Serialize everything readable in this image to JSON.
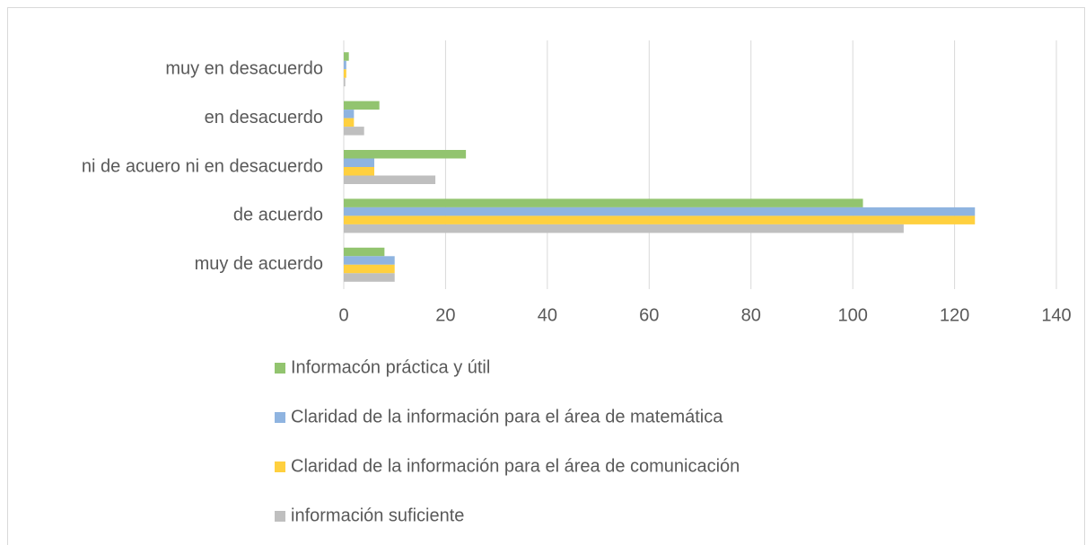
{
  "chart_data": {
    "type": "hbar",
    "categories": [
      "muy en desacuerdo",
      "en desacuerdo",
      "ni de acuero  ni en desacuerdo",
      "de acuerdo",
      "muy de acuerdo"
    ],
    "series": [
      {
        "name": "Informacón práctica y útil",
        "color": "#92c46f",
        "values": [
          1,
          7,
          24,
          102,
          8
        ]
      },
      {
        "name": "Claridad de la información para el área de matemática",
        "color": "#8fb4e0",
        "values": [
          0.5,
          2,
          6,
          124,
          10
        ]
      },
      {
        "name": "Claridad de la información para el área de comunicación",
        "color": "#ffd03f",
        "values": [
          0.5,
          2,
          6,
          124,
          10
        ]
      },
      {
        "name": "información suficiente",
        "color": "#bfbfbf",
        "values": [
          0.3,
          4,
          18,
          110,
          10
        ]
      }
    ],
    "xlim": [
      0,
      140
    ],
    "xticks": [
      0,
      20,
      40,
      60,
      80,
      100,
      120,
      140
    ],
    "grid": true
  }
}
